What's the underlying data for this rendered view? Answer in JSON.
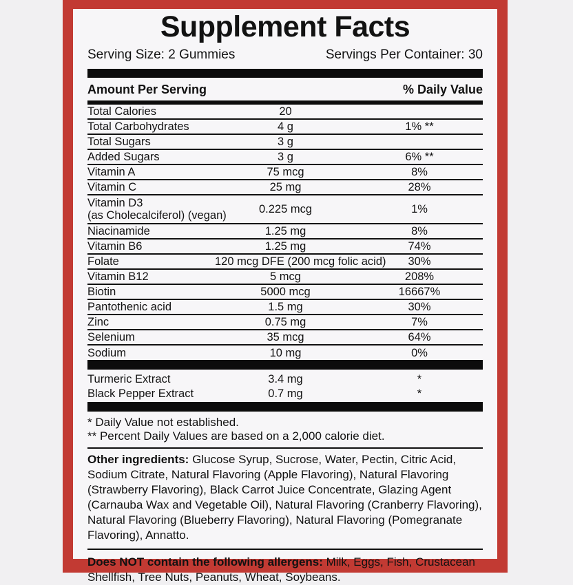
{
  "label": {
    "title": "Supplement Facts",
    "serving_size": "Serving Size: 2 Gummies",
    "servings_per_container": "Servings Per Container: 30",
    "header": {
      "amount": "Amount Per Serving",
      "daily_value": "% Daily Value"
    },
    "rows": [
      {
        "name": "Total Calories",
        "amount": "20",
        "dv": ""
      },
      {
        "name": "Total Carbohydrates",
        "amount": "4 g",
        "dv": "1% **"
      },
      {
        "name": "Total Sugars",
        "amount": "3 g",
        "dv": ""
      },
      {
        "name": "Added Sugars",
        "amount": "3 g",
        "dv": "6% **"
      },
      {
        "name": "Vitamin A",
        "amount": "75 mcg",
        "dv": "8%"
      },
      {
        "name": "Vitamin C",
        "amount": "25 mg",
        "dv": "28%"
      },
      {
        "name": "Vitamin D3",
        "name2": "(as Cholecalciferol) (vegan)",
        "amount": "0.225 mcg",
        "dv": "1%"
      },
      {
        "name": "Niacinamide",
        "amount": "1.25 mg",
        "dv": "8%"
      },
      {
        "name": "Vitamin B6",
        "amount": "1.25 mg",
        "dv": "74%"
      },
      {
        "name": "Folate",
        "amount": "120 mcg DFE (200 mcg folic acid)",
        "dv": "30%"
      },
      {
        "name": "Vitamin B12",
        "amount": "5 mcg",
        "dv": "208%"
      },
      {
        "name": "Biotin",
        "amount": "5000 mcg",
        "dv": "16667%"
      },
      {
        "name": "Pantothenic acid",
        "amount": "1.5 mg",
        "dv": "30%"
      },
      {
        "name": "Zinc",
        "amount": "0.75 mg",
        "dv": "7%"
      },
      {
        "name": "Selenium",
        "amount": "35 mcg",
        "dv": "64%"
      },
      {
        "name": "Sodium",
        "amount": "10 mg",
        "dv": "0%"
      }
    ],
    "extracts": [
      {
        "name": "Turmeric Extract",
        "amount": "3.4 mg",
        "dv": "*"
      },
      {
        "name": "Black Pepper Extract",
        "amount": "0.7 mg",
        "dv": "*"
      }
    ],
    "footnotes": [
      "* Daily Value not established.",
      "** Percent Daily Values are based on a 2,000 calorie diet."
    ],
    "other_ingredients_label": "Other ingredients:",
    "other_ingredients_text": " Glucose Syrup, Sucrose, Water, Pectin, Citric Acid, Sodium Citrate, Natural Flavoring (Apple Flavoring), Natural Flavoring (Strawberry Flavoring), Black Carrot Juice Concentrate, Glazing Agent (Carnauba Wax and Vegetable Oil), Natural Flavoring (Cranberry Flavoring), Natural Flavoring (Blueberry Flavoring), Natural Flavoring (Pomegranate Flavoring), Annatto.",
    "allergens_label": "Does NOT contain the following allergens:",
    "allergens_text": " Milk, Eggs, Fish, Crustacean Shellfish, Tree Nuts, Peanuts, Wheat, Soybeans.",
    "colors": {
      "border_red": "#c23a33",
      "outer_bg": "#f1f0f2",
      "panel_bg": "#f7f6f8",
      "bar_black": "#0c0c0c"
    }
  }
}
